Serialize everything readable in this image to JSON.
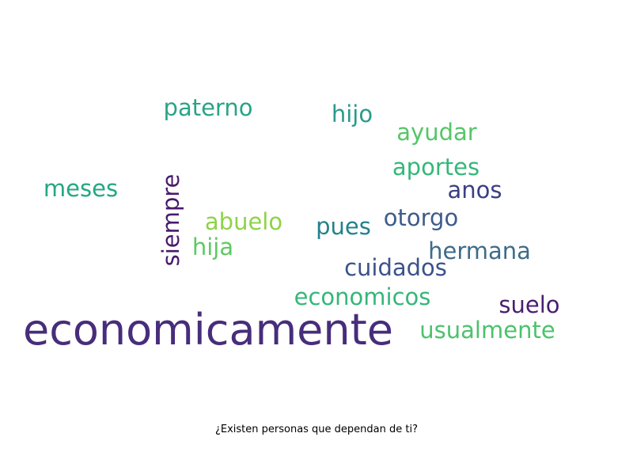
{
  "chart_data": {
    "type": "wordcloud",
    "caption": "¿Existen personas que dependan de ti?",
    "words": [
      {
        "text": "economicamente",
        "weight": 100,
        "color": "#472d7b",
        "rotated": false
      },
      {
        "text": "cuidados",
        "weight": 53,
        "color": "#3b528b",
        "rotated": false
      },
      {
        "text": "economicos",
        "weight": 53,
        "color": "#35b779",
        "rotated": false
      },
      {
        "text": "hermana",
        "weight": 53,
        "color": "#3e6b8a",
        "rotated": false
      },
      {
        "text": "usualmente",
        "weight": 53,
        "color": "#4cc26c",
        "rotated": false
      },
      {
        "text": "siempre",
        "weight": 53,
        "color": "#481a6c",
        "rotated": true
      },
      {
        "text": "paterno",
        "weight": 53,
        "color": "#2aa387",
        "rotated": false
      },
      {
        "text": "hijo",
        "weight": 53,
        "color": "#2a9a8c",
        "rotated": false
      },
      {
        "text": "ayudar",
        "weight": 53,
        "color": "#55c667",
        "rotated": false
      },
      {
        "text": "aportes",
        "weight": 53,
        "color": "#35b779",
        "rotated": false
      },
      {
        "text": "meses",
        "weight": 53,
        "color": "#22a884",
        "rotated": false
      },
      {
        "text": "anos",
        "weight": 53,
        "color": "#3b3f84",
        "rotated": false
      },
      {
        "text": "abuelo",
        "weight": 53,
        "color": "#8ed348",
        "rotated": false
      },
      {
        "text": "hija",
        "weight": 53,
        "color": "#5ec962",
        "rotated": false
      },
      {
        "text": "pues",
        "weight": 53,
        "color": "#23818c",
        "rotated": false
      },
      {
        "text": "otorgo",
        "weight": 53,
        "color": "#3e5c8a",
        "rotated": false
      },
      {
        "text": "suelo",
        "weight": 53,
        "color": "#481f70",
        "rotated": false
      }
    ]
  }
}
